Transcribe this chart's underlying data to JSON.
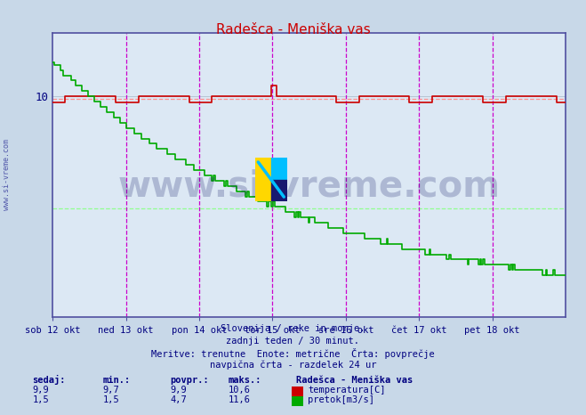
{
  "title": "Radešca - Meniška vas",
  "bg_color": "#c8d8e8",
  "plot_bg_color": "#dce8f4",
  "grid_color": "#a8b8c8",
  "axis_color": "#5050a0",
  "text_color": "#000080",
  "footer_lines": [
    "Slovenija / reke in morje.",
    "zadnji teden / 30 minut.",
    "Meritve: trenutne  Enote: metrične  Črta: povprečje",
    "navpična črta - razdelek 24 ur"
  ],
  "xlabel_ticks": [
    "sob 12 okt",
    "ned 13 okt",
    "pon 14 okt",
    "tor 15 okt",
    "sre 16 okt",
    "čet 17 okt",
    "pet 18 okt"
  ],
  "ylim": [
    -0.5,
    13.0
  ],
  "temp_color": "#cc0000",
  "flow_color": "#00aa00",
  "vline_color": "#cc00cc",
  "watermark": "www.si-vreme.com",
  "watermark_color": "#0a1060",
  "watermark_alpha": 0.22,
  "n_points": 336,
  "days": 7,
  "temp_sedaj": "9,9",
  "temp_min": "9,7",
  "temp_povpr": "9,9",
  "temp_maks": "10,6",
  "flow_sedaj": "1,5",
  "flow_min": "1,5",
  "flow_povpr": "4,7",
  "flow_maks": "11,6",
  "temp_avg_val": 9.9,
  "flow_avg_val": 4.7,
  "temp_max_val": 10.6,
  "flow_max_val": 11.6,
  "flow_min_val": 1.5,
  "temp_min_val": 9.7,
  "legend_title": "Radešca - Meniška vas",
  "legend_headers": [
    "sedaj:",
    "min.:",
    "povpr.:",
    "maks.:"
  ],
  "legend_label_temp": "temperatura[C]",
  "legend_label_flow": "pretok[m3/s]",
  "sidewater_text": "www.si-vreme.com"
}
